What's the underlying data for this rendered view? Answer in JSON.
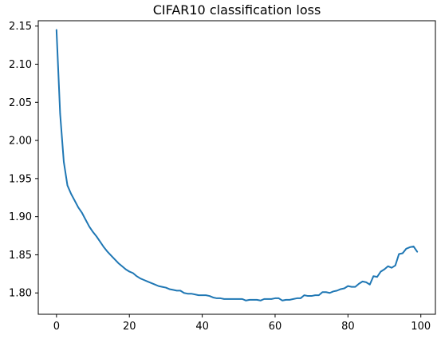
{
  "chart_data": {
    "type": "line",
    "title": "CIFAR10 classification loss",
    "xlabel": "",
    "ylabel": "",
    "xlim": [
      -5,
      104
    ],
    "ylim": [
      1.772,
      2.157
    ],
    "xticks": [
      0,
      20,
      40,
      60,
      80,
      100
    ],
    "xtick_labels": [
      "0",
      "20",
      "40",
      "60",
      "80",
      "100"
    ],
    "yticks": [
      1.8,
      1.85,
      1.9,
      1.95,
      2.0,
      2.05,
      2.1,
      2.15
    ],
    "ytick_labels": [
      "1.80",
      "1.85",
      "1.90",
      "1.95",
      "2.00",
      "2.05",
      "2.10",
      "2.15"
    ],
    "grid": false,
    "series": [
      {
        "color": "#1f77b4",
        "x": [
          0,
          1,
          2,
          3,
          4,
          5,
          6,
          7,
          8,
          9,
          10,
          11,
          12,
          13,
          14,
          15,
          16,
          17,
          18,
          19,
          20,
          21,
          22,
          23,
          24,
          25,
          26,
          27,
          28,
          29,
          30,
          31,
          32,
          33,
          34,
          35,
          36,
          37,
          38,
          39,
          40,
          41,
          42,
          43,
          44,
          45,
          46,
          47,
          48,
          49,
          50,
          51,
          52,
          53,
          54,
          55,
          56,
          57,
          58,
          59,
          60,
          61,
          62,
          63,
          64,
          65,
          66,
          67,
          68,
          69,
          70,
          71,
          72,
          73,
          74,
          75,
          76,
          77,
          78,
          79,
          80,
          81,
          82,
          83,
          84,
          85,
          86,
          87,
          88,
          89,
          90,
          91,
          92,
          93,
          94,
          95,
          96,
          97,
          98,
          99
        ],
        "y": [
          2.145,
          2.035,
          1.972,
          1.941,
          1.93,
          1.921,
          1.912,
          1.905,
          1.896,
          1.887,
          1.88,
          1.874,
          1.867,
          1.86,
          1.854,
          1.849,
          1.844,
          1.839,
          1.835,
          1.831,
          1.828,
          1.826,
          1.822,
          1.819,
          1.817,
          1.815,
          1.813,
          1.811,
          1.809,
          1.808,
          1.807,
          1.805,
          1.804,
          1.803,
          1.803,
          1.8,
          1.799,
          1.799,
          1.798,
          1.797,
          1.797,
          1.797,
          1.796,
          1.794,
          1.793,
          1.793,
          1.792,
          1.792,
          1.792,
          1.792,
          1.792,
          1.792,
          1.79,
          1.791,
          1.791,
          1.791,
          1.79,
          1.792,
          1.792,
          1.792,
          1.793,
          1.793,
          1.79,
          1.791,
          1.791,
          1.792,
          1.793,
          1.793,
          1.797,
          1.796,
          1.796,
          1.797,
          1.797,
          1.801,
          1.801,
          1.8,
          1.802,
          1.803,
          1.805,
          1.806,
          1.809,
          1.808,
          1.808,
          1.812,
          1.815,
          1.814,
          1.811,
          1.822,
          1.821,
          1.828,
          1.831,
          1.835,
          1.833,
          1.836,
          1.851,
          1.852,
          1.858,
          1.86,
          1.861,
          1.854
        ]
      }
    ]
  }
}
